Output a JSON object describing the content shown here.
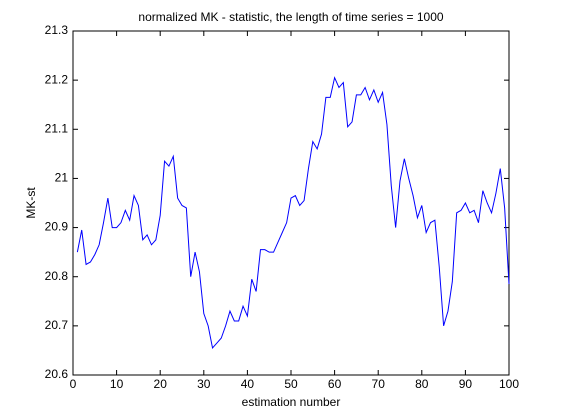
{
  "chart_data": {
    "type": "line",
    "title": "normalized MK - statistic, the length of time series = 1000",
    "xlabel": "estimation number",
    "ylabel": "MK-st",
    "x": [
      1,
      2,
      3,
      4,
      5,
      6,
      7,
      8,
      9,
      10,
      11,
      12,
      13,
      14,
      15,
      16,
      17,
      18,
      19,
      20,
      21,
      22,
      23,
      24,
      25,
      26,
      27,
      28,
      29,
      30,
      31,
      32,
      33,
      34,
      35,
      36,
      37,
      38,
      39,
      40,
      41,
      42,
      43,
      44,
      45,
      46,
      47,
      48,
      49,
      50,
      51,
      52,
      53,
      54,
      55,
      56,
      57,
      58,
      59,
      60,
      61,
      62,
      63,
      64,
      65,
      66,
      67,
      68,
      69,
      70,
      71,
      72,
      73,
      74,
      75,
      76,
      77,
      78,
      79,
      80,
      81,
      82,
      83,
      84,
      85,
      86,
      87,
      88,
      89,
      90,
      91,
      92,
      93,
      94,
      95,
      96,
      97,
      98,
      99,
      100
    ],
    "series": [
      {
        "name": "MK-st",
        "color": "#0000ff",
        "values": [
          20.85,
          20.895,
          20.825,
          20.83,
          20.845,
          20.865,
          20.91,
          20.96,
          20.9,
          20.9,
          20.91,
          20.935,
          20.915,
          20.965,
          20.945,
          20.875,
          20.885,
          20.865,
          20.875,
          20.925,
          21.035,
          21.025,
          21.045,
          20.96,
          20.945,
          20.94,
          20.8,
          20.85,
          20.81,
          20.725,
          20.7,
          20.655,
          20.665,
          20.675,
          20.7,
          20.73,
          20.71,
          20.71,
          20.74,
          20.72,
          20.795,
          20.77,
          20.855,
          20.855,
          20.85,
          20.85,
          20.87,
          20.89,
          20.91,
          20.96,
          20.965,
          20.945,
          20.955,
          21.02,
          21.075,
          21.06,
          21.09,
          21.165,
          21.165,
          21.205,
          21.185,
          21.195,
          21.105,
          21.115,
          21.17,
          21.17,
          21.185,
          21.16,
          21.18,
          21.155,
          21.175,
          21.11,
          20.985,
          20.9,
          20.995,
          21.04,
          21.0,
          20.965,
          20.92,
          20.945,
          20.89,
          20.91,
          20.915,
          20.82,
          20.7,
          20.73,
          20.79,
          20.93,
          20.935,
          20.95,
          20.93,
          20.935,
          20.91,
          20.975,
          20.95,
          20.93,
          20.97,
          21.02,
          20.94,
          20.785
        ]
      }
    ],
    "xlim": [
      0,
      100
    ],
    "xticks": [
      0,
      10,
      20,
      30,
      40,
      50,
      60,
      70,
      80,
      90,
      100
    ],
    "ylim": [
      20.6,
      21.3
    ],
    "yticks": [
      20.6,
      20.7,
      20.8,
      20.9,
      21,
      21.1,
      21.2,
      21.3
    ],
    "grid": false
  }
}
